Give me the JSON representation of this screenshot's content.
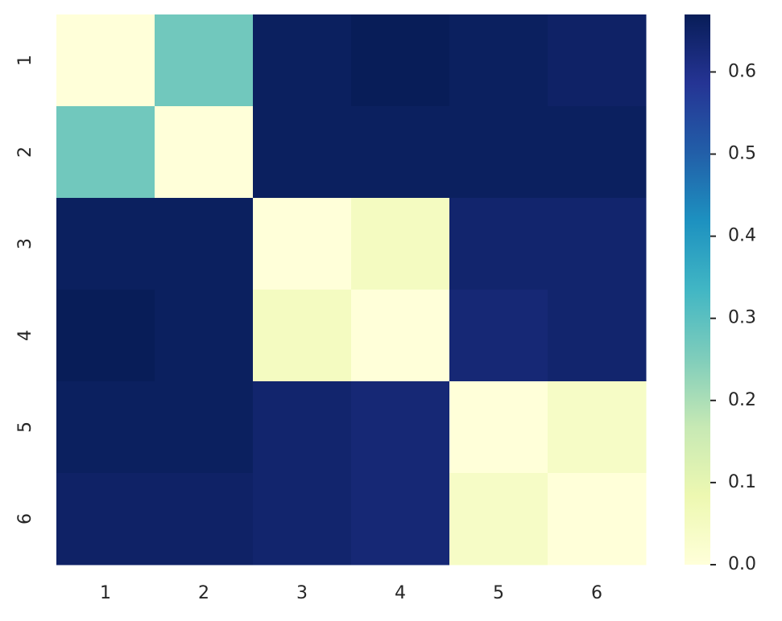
{
  "chart_data": {
    "type": "heatmap",
    "x_categories": [
      "1",
      "2",
      "3",
      "4",
      "5",
      "6"
    ],
    "y_categories": [
      "1",
      "2",
      "3",
      "4",
      "5",
      "6"
    ],
    "z": [
      [
        0,
        0.27,
        0.66,
        0.67,
        0.66,
        0.65
      ],
      [
        0.27,
        0,
        0.66,
        0.66,
        0.66,
        0.66
      ],
      [
        0.66,
        0.66,
        0,
        0.05,
        0.64,
        0.64
      ],
      [
        0.67,
        0.66,
        0.05,
        0,
        0.63,
        0.64
      ],
      [
        0.66,
        0.66,
        0.64,
        0.63,
        0,
        0.04
      ],
      [
        0.65,
        0.65,
        0.64,
        0.63,
        0.04,
        0
      ]
    ],
    "colormap": "YlGnBu",
    "colorbar_lim": [
      0,
      0.67
    ],
    "colorbar_ticks": [
      {
        "value": 0,
        "label": "0.0"
      },
      {
        "value": 0.1,
        "label": "0.1"
      },
      {
        "value": 0.2,
        "label": "0.2"
      },
      {
        "value": 0.3,
        "label": "0.3"
      },
      {
        "value": 0.4,
        "label": "0.4"
      },
      {
        "value": 0.5,
        "label": "0.5"
      },
      {
        "value": 0.6,
        "label": "0.6"
      }
    ]
  }
}
